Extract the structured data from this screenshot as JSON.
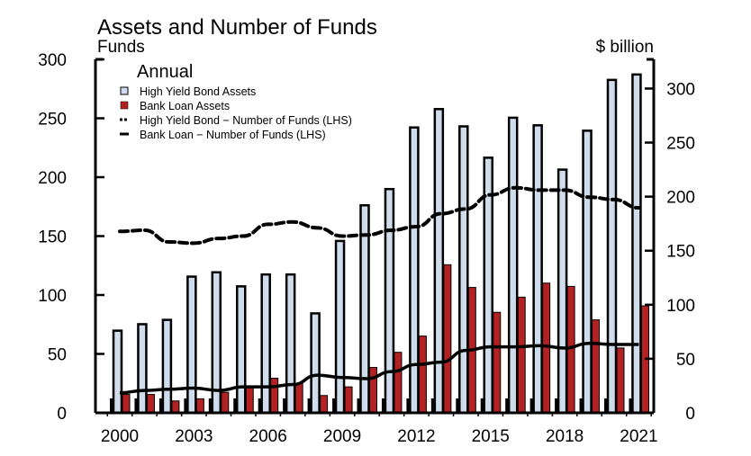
{
  "chart_data": {
    "type": "bar",
    "title": "Assets and Number of Funds",
    "left_axis_label": "Funds",
    "right_axis_label": "$ billion",
    "legend_title": "Annual",
    "legend_placement": "top-left",
    "grid": false,
    "categories": [
      "2000",
      "2001",
      "2002",
      "2003",
      "2004",
      "2005",
      "2006",
      "2007",
      "2008",
      "2009",
      "2010",
      "2011",
      "2012",
      "2013",
      "2014",
      "2015",
      "2016",
      "2017",
      "2018",
      "2019",
      "2020",
      "2021"
    ],
    "x_tick_labels": [
      "2000",
      "2003",
      "2006",
      "2009",
      "2012",
      "2015",
      "2018",
      "2021"
    ],
    "left_axis": {
      "range": [
        0,
        300
      ],
      "ticks": [
        "0",
        "50",
        "100",
        "150",
        "200",
        "250",
        "300"
      ]
    },
    "right_axis": {
      "range": [
        0,
        327
      ],
      "ticks": [
        "0",
        "50",
        "100",
        "150",
        "200",
        "250",
        "300"
      ]
    },
    "series": [
      {
        "name": "High Yield Bond Assets",
        "kind": "bar",
        "axis": "right",
        "color": "#CFDCEB",
        "values": [
          76,
          82,
          86,
          126,
          130,
          117,
          128,
          128,
          92,
          159,
          192,
          207,
          264,
          281,
          265,
          236,
          273,
          266,
          225,
          261,
          308,
          313
        ]
      },
      {
        "name": "Bank Loan Assets",
        "kind": "bar",
        "axis": "right",
        "color": "#B22222",
        "values": [
          17,
          17,
          11,
          13,
          19,
          24,
          32,
          27,
          16,
          24,
          42,
          56,
          71,
          137,
          116,
          93,
          107,
          120,
          117,
          86,
          60,
          99
        ]
      },
      {
        "name": "High Yield Bond − Number of Funds (LHS)",
        "kind": "line-dashed",
        "axis": "left",
        "color": "#000000",
        "values": [
          154,
          155,
          145,
          144,
          148,
          150,
          160,
          162,
          157,
          150,
          151,
          155,
          158,
          169,
          173,
          185,
          191,
          189,
          189,
          183,
          181,
          174
        ]
      },
      {
        "name": "Bank Loan − Number of Funds (LHS)",
        "kind": "line-solid",
        "axis": "left",
        "color": "#000000",
        "values": [
          17,
          19,
          20,
          21,
          19,
          22,
          22,
          24,
          32,
          30,
          29,
          35,
          41,
          43,
          53,
          56,
          56,
          57,
          55,
          59,
          58,
          58
        ]
      }
    ]
  }
}
